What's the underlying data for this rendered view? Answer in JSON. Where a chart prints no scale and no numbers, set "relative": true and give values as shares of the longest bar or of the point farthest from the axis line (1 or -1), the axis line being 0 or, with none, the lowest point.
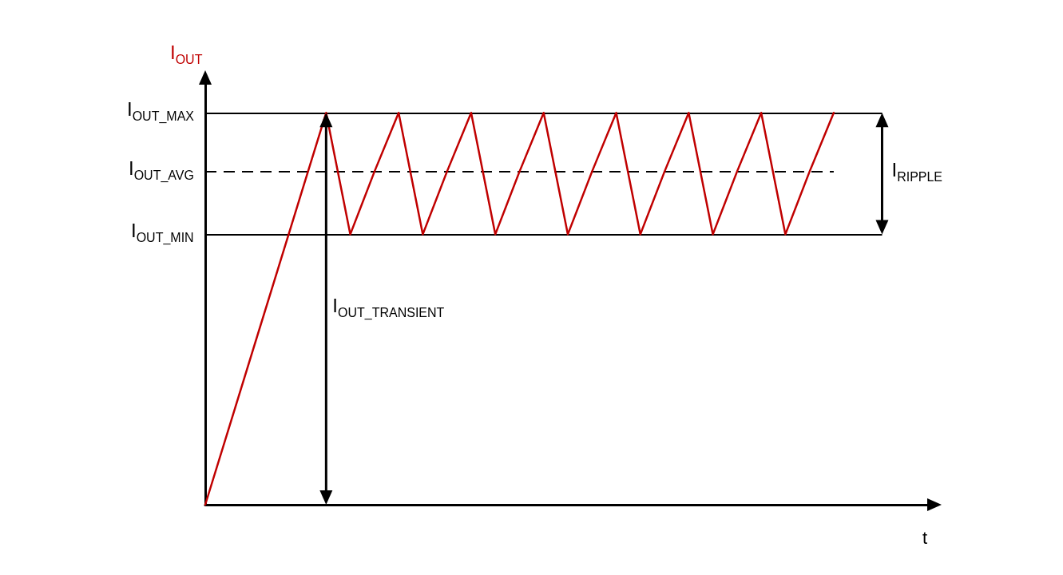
{
  "chart_data": {
    "type": "line",
    "relative": true,
    "ylabel": "I$_{OUT}$",
    "xlabel": "t",
    "marker": "none",
    "grid": false,
    "categories": [
      null,
      null,
      null,
      null,
      null,
      null,
      null,
      null,
      null,
      null,
      null,
      null,
      null,
      null,
      null,
      null,
      null,
      null,
      null,
      null,
      null,
      null,
      null,
      null,
      null,
      null,
      null,
      null,
      null,
      null,
      null
    ],
    "series": [
      {
        "color": "#c00000",
        "values": [
          0,
          0.2,
          0.4,
          0.6,
          0.8,
          1,
          0.69,
          0.85,
          1,
          0.69,
          0.85,
          1,
          0.69,
          0.85,
          1,
          0.69,
          0.85,
          1,
          0.69,
          0.85,
          1,
          0.69,
          0.85,
          1,
          0.69,
          0.85,
          1,
          null,
          null,
          null,
          null
        ]
      }
    ],
    "ref_lines": [
      {
        "axis": "y",
        "value": 1,
        "label": "I$_{OUT_MAX}$",
        "color": "#000000",
        "line_style": "solid"
      },
      {
        "axis": "y",
        "value": 0.85,
        "label": "I$_{OUT_AVG}$",
        "color": "#000000",
        "line_style": "dashed"
      },
      {
        "axis": "y",
        "value": 0.69,
        "label": "I$_{OUT_MIN}$",
        "color": "#000000",
        "line_style": "solid"
      }
    ],
    "annotations": [
      "I$_{OUT_TRANSIENT}$",
      "I$_{RIPPLE}$"
    ]
  }
}
